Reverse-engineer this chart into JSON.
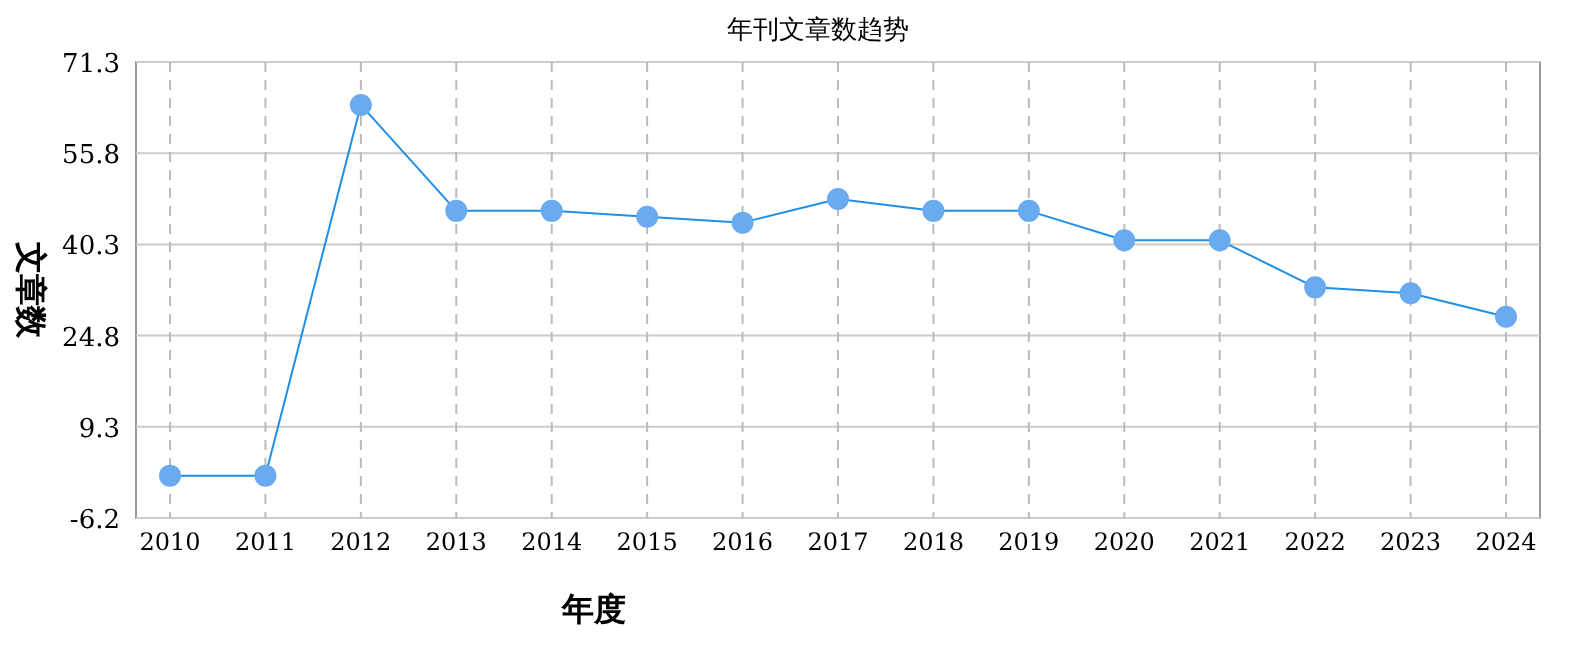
{
  "chart_data": {
    "type": "line",
    "title": "年刊文章数趋势",
    "xlabel": "年度",
    "ylabel": "文章数",
    "categories": [
      "2010",
      "2011",
      "2012",
      "2013",
      "2014",
      "2015",
      "2016",
      "2017",
      "2018",
      "2019",
      "2020",
      "2021",
      "2022",
      "2023",
      "2024"
    ],
    "series": [
      {
        "color": "#1e90e8",
        "values": [
          1,
          1,
          64,
          46,
          46,
          45,
          44,
          48,
          46,
          46,
          41,
          41,
          33,
          32,
          28
        ]
      }
    ],
    "ylim": [
      -6.2,
      71.3
    ],
    "yticks": [
      -6.2,
      9.3,
      24.8,
      40.3,
      55.8,
      71.3
    ],
    "grid": true,
    "marker": "circle"
  }
}
